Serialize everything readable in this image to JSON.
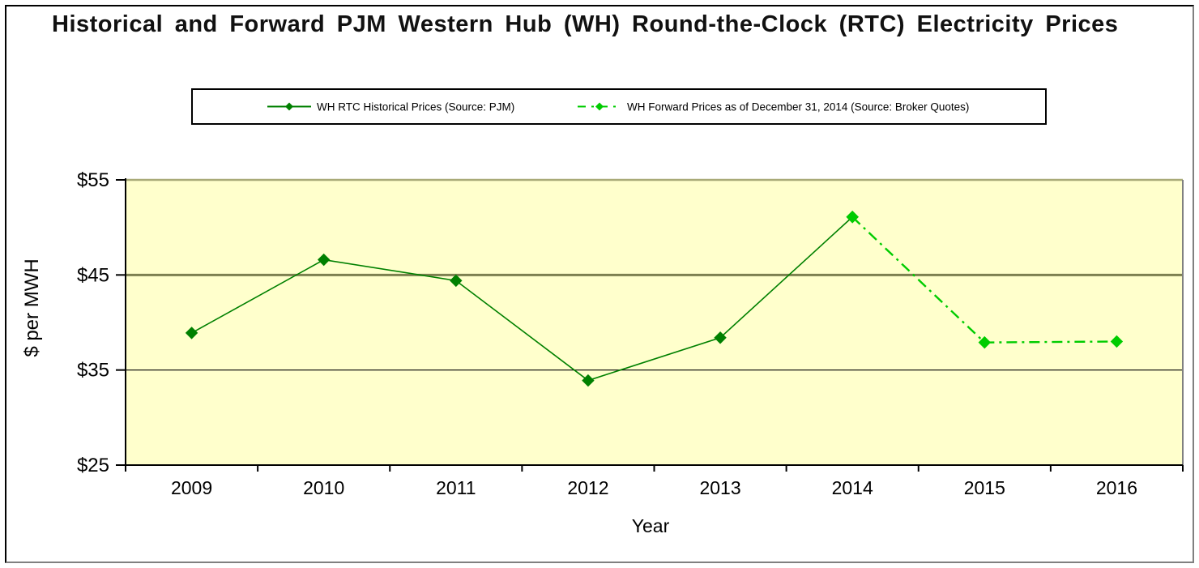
{
  "title": "Historical and Forward PJM Western Hub (WH) Round-the-Clock (RTC) Electricity Prices",
  "legend": {
    "items": [
      {
        "label": "WH RTC Historical Prices (Source: PJM)",
        "color": "#008000",
        "style": "solid"
      },
      {
        "label": "WH Forward Prices as of December 31, 2014 (Source: Broker Quotes)",
        "color": "#00CC00",
        "style": "dash-dot"
      }
    ]
  },
  "chart_data": {
    "type": "line",
    "categories": [
      "2009",
      "2010",
      "2011",
      "2012",
      "2013",
      "2014",
      "2015",
      "2016"
    ],
    "series": [
      {
        "name": "WH RTC Historical Prices (Source: PJM)",
        "style": "solid",
        "color": "#008000",
        "line_width": 1.6,
        "x": [
          "2009",
          "2010",
          "2011",
          "2012",
          "2013",
          "2014"
        ],
        "values": [
          38.9,
          46.6,
          44.4,
          33.9,
          38.4,
          51.1
        ]
      },
      {
        "name": "WH Forward Prices as of December 31, 2014 (Source: Broker Quotes)",
        "style": "dash-dot",
        "color": "#00CC00",
        "line_width": 2.4,
        "x": [
          "2014",
          "2015",
          "2016"
        ],
        "values": [
          51.1,
          37.9,
          38.0
        ]
      }
    ],
    "title": "Historical and Forward PJM Western Hub (WH) Round-the-Clock (RTC) Electricity Prices",
    "xlabel": "Year",
    "ylabel": "$ per MWH",
    "ylim": [
      25,
      55
    ],
    "yticks": [
      25,
      35,
      45,
      55
    ],
    "ytick_labels": [
      "$25",
      "$35",
      "$45",
      "$55"
    ],
    "plot_bg": "#FFFFCC",
    "grid": "horizontal-major",
    "legend_position": "top-center-boxed",
    "gridlines": [
      {
        "value": 35,
        "color": "#000000",
        "width": 1.2
      },
      {
        "value": 45,
        "color": "#7D8050",
        "width": 3
      },
      {
        "value": 55,
        "color": "#A9AA78",
        "width": 2.5
      }
    ],
    "axis_colors": {
      "left": "#000000",
      "bottom": "#000000",
      "right": "#808080"
    }
  }
}
